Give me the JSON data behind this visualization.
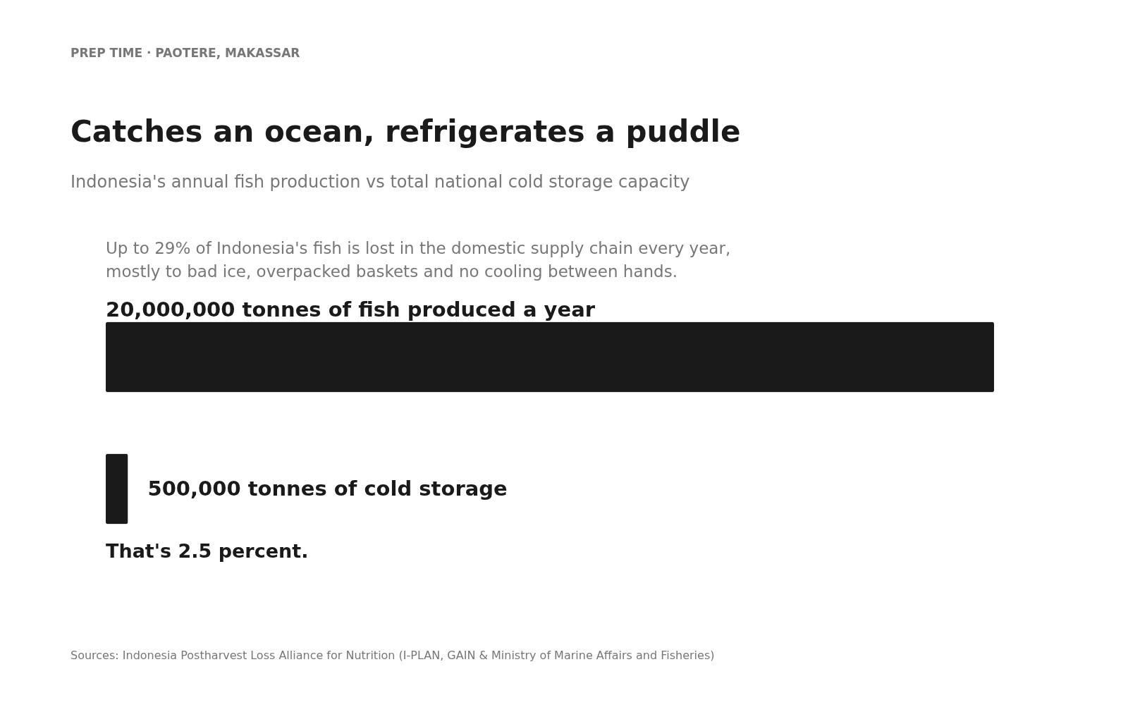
{
  "chart_data": {
    "type": "bar",
    "orientation": "horizontal",
    "title": "Catches an ocean, refrigerates a puddle",
    "subtitle": "Indonesia's annual fish production vs total national cold storage capacity",
    "categories": [
      null,
      null
    ],
    "values": [
      20000000,
      500000
    ],
    "colors": [
      "#1a1a1a",
      "#1a1a1a"
    ],
    "value_labels": [
      "20,000,000 tonnes of fish produced a year",
      "500,000 tonnes of cold storage"
    ],
    "xlim": [
      0,
      20000000
    ],
    "annotations": [
      "PREP TIME  ·  PAOTERE, MAKASSAR",
      "Up to 29% of Indonesia's fish is lost in the domestic supply chain every year,",
      "mostly to bad ice, overpacked baskets and no cooling between hands.",
      "That's 2.5 percent.",
      "Sources: Indonesia Postharvest Loss Alliance for Nutrition (I-PLAN, GAIN & Ministry of Marine Affairs and Fisheries)"
    ]
  }
}
